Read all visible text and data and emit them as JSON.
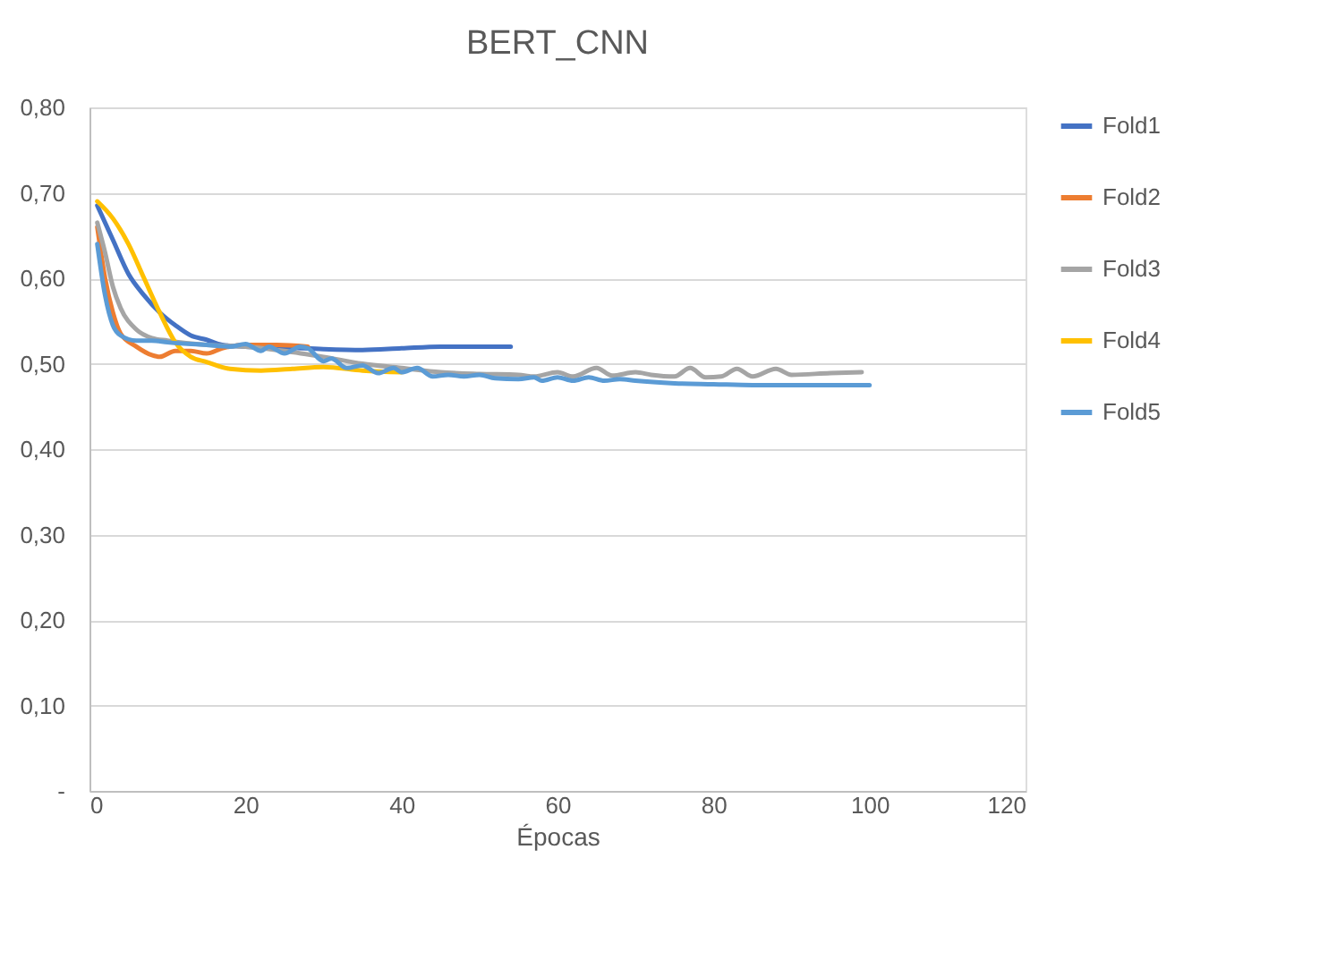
{
  "chart_data": {
    "type": "line",
    "title": "BERT_CNN",
    "xlabel": "Épocas",
    "xlim": [
      0,
      120
    ],
    "xticks": [
      0,
      20,
      40,
      60,
      80,
      100,
      120
    ],
    "ylim": [
      0,
      0.8
    ],
    "yticks": [
      {
        "value": 0,
        "label": "-"
      },
      {
        "value": 0.1,
        "label": "0,10"
      },
      {
        "value": 0.2,
        "label": "0,20"
      },
      {
        "value": 0.3,
        "label": "0,30"
      },
      {
        "value": 0.4,
        "label": "0,40"
      },
      {
        "value": 0.5,
        "label": "0,50"
      },
      {
        "value": 0.6,
        "label": "0,60"
      },
      {
        "value": 0.7,
        "label": "0,70"
      },
      {
        "value": 0.8,
        "label": "0,80"
      }
    ],
    "grid": "y",
    "legend": "right",
    "marker": "none",
    "line_style": "solid",
    "series": [
      {
        "name": "Fold1",
        "color": "#4472c4",
        "x": [
          1,
          3,
          5,
          7,
          9,
          11,
          13,
          15,
          17,
          20,
          25,
          30,
          35,
          40,
          45,
          50,
          54
        ],
        "values": [
          0.685,
          0.645,
          0.605,
          0.58,
          0.56,
          0.545,
          0.533,
          0.528,
          0.522,
          0.52,
          0.519,
          0.517,
          0.516,
          0.518,
          0.52,
          0.52,
          0.52
        ]
      },
      {
        "name": "Fold2",
        "color": "#ed7d31",
        "x": [
          1,
          2,
          3,
          4,
          6,
          8,
          9,
          11,
          13,
          15,
          17,
          20,
          24,
          28
        ],
        "values": [
          0.66,
          0.6,
          0.56,
          0.535,
          0.52,
          0.51,
          0.508,
          0.515,
          0.515,
          0.512,
          0.518,
          0.522,
          0.522,
          0.52
        ]
      },
      {
        "name": "Fold3",
        "color": "#a5a5a5",
        "x": [
          1,
          2,
          3,
          4,
          6,
          8,
          10,
          15,
          20,
          25,
          30,
          35,
          40,
          45,
          50,
          55,
          57,
          60,
          62,
          65,
          67,
          70,
          72,
          75,
          77,
          79,
          81,
          83,
          85,
          88,
          90,
          95,
          99
        ],
        "values": [
          0.665,
          0.63,
          0.59,
          0.565,
          0.54,
          0.53,
          0.527,
          0.522,
          0.52,
          0.515,
          0.508,
          0.5,
          0.495,
          0.49,
          0.488,
          0.487,
          0.485,
          0.49,
          0.485,
          0.495,
          0.486,
          0.49,
          0.487,
          0.485,
          0.495,
          0.484,
          0.485,
          0.494,
          0.485,
          0.494,
          0.487,
          0.489,
          0.49
        ]
      },
      {
        "name": "Fold4",
        "color": "#ffc000",
        "x": [
          1,
          3,
          5,
          7,
          9,
          11,
          13,
          15,
          18,
          22,
          26,
          30,
          35,
          40
        ],
        "values": [
          0.69,
          0.67,
          0.64,
          0.6,
          0.56,
          0.525,
          0.508,
          0.502,
          0.494,
          0.492,
          0.494,
          0.496,
          0.492,
          0.49
        ]
      },
      {
        "name": "Fold5",
        "color": "#5b9bd5",
        "x": [
          1,
          2,
          3,
          4,
          6,
          8,
          10,
          15,
          18,
          20,
          22,
          23,
          25,
          27,
          28,
          30,
          31,
          33,
          35,
          37,
          39,
          40,
          42,
          44,
          46,
          48,
          50,
          52,
          55,
          57,
          58,
          60,
          62,
          64,
          66,
          68,
          70,
          75,
          80,
          85,
          90,
          95,
          100
        ],
        "values": [
          0.64,
          0.58,
          0.545,
          0.533,
          0.527,
          0.527,
          0.525,
          0.522,
          0.52,
          0.523,
          0.515,
          0.52,
          0.512,
          0.52,
          0.518,
          0.503,
          0.506,
          0.495,
          0.498,
          0.489,
          0.495,
          0.49,
          0.495,
          0.485,
          0.487,
          0.485,
          0.487,
          0.483,
          0.482,
          0.484,
          0.48,
          0.484,
          0.48,
          0.484,
          0.48,
          0.482,
          0.48,
          0.477,
          0.476,
          0.475,
          0.475,
          0.475,
          0.475
        ]
      }
    ]
  }
}
